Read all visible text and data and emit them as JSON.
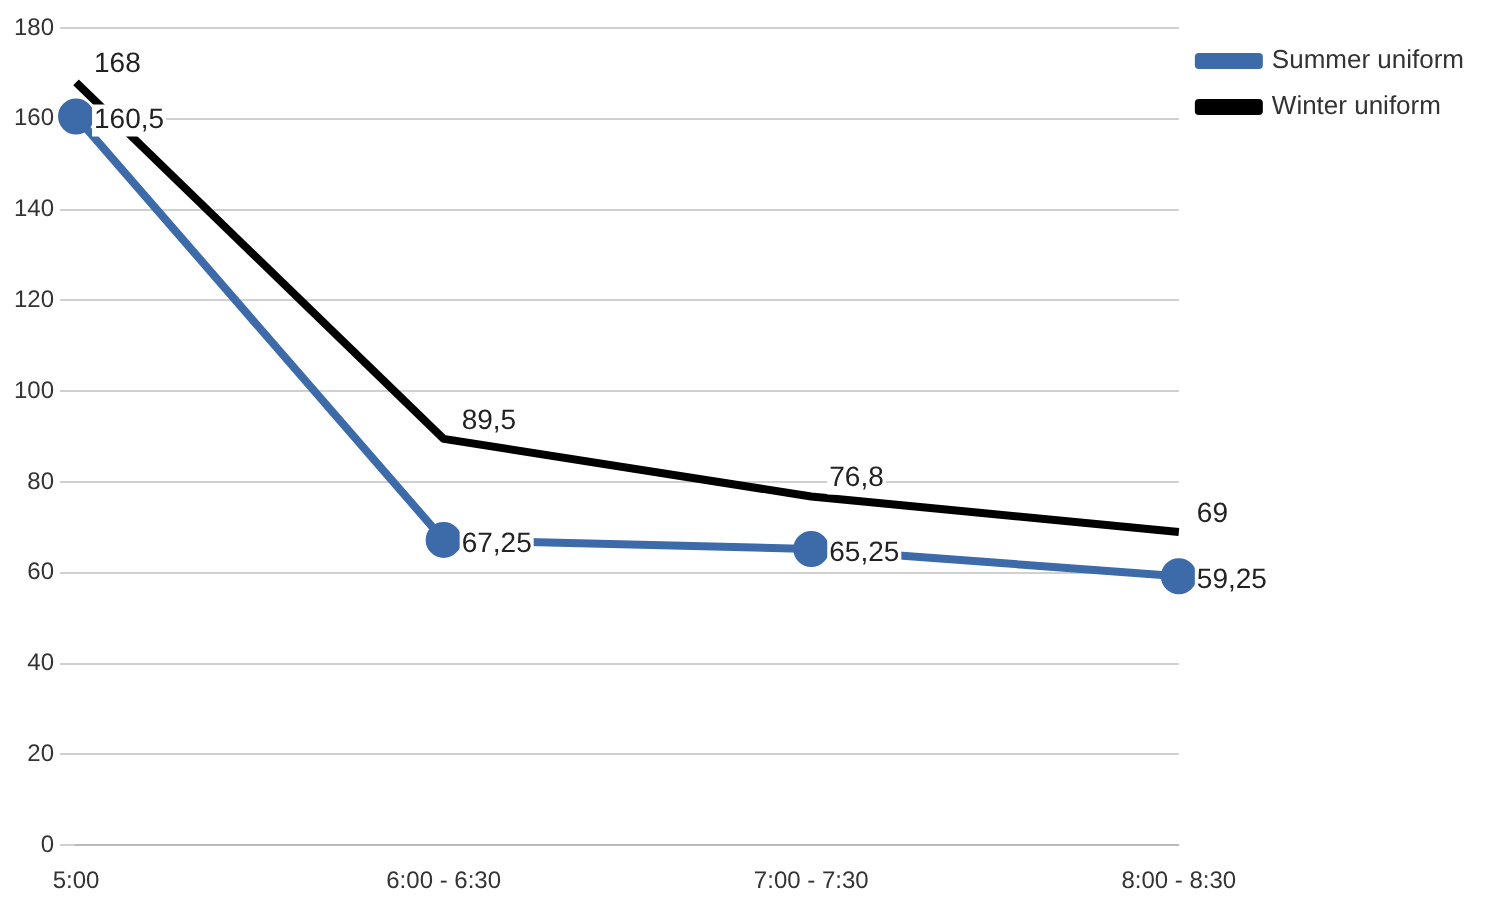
{
  "chart_data": {
    "type": "line",
    "categories": [
      "5:00",
      "6:00 - 6:30",
      "7:00 - 7:30",
      "8:00 - 8:30"
    ],
    "series": [
      {
        "name": "Summer uniform",
        "color": "#3d6aa8",
        "marker": "circle",
        "values": [
          160.5,
          67.25,
          65.25,
          59.25
        ],
        "value_labels": [
          "160,5",
          "67,25",
          "65,25",
          "59,25"
        ]
      },
      {
        "name": "Winter uniform",
        "color": "#000000",
        "marker": "none",
        "values": [
          168,
          89.5,
          76.8,
          69
        ],
        "value_labels": [
          "168",
          "89,5",
          "76,8",
          "69"
        ]
      }
    ],
    "ylim": [
      0,
      180
    ],
    "yticks": [
      0,
      20,
      40,
      60,
      80,
      100,
      120,
      140,
      160,
      180
    ],
    "grid": "y",
    "legend": "right",
    "line_style": "solid"
  }
}
